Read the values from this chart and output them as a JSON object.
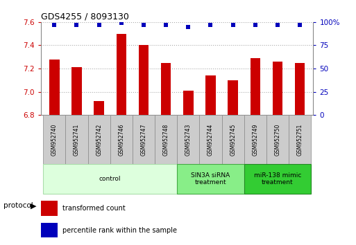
{
  "title": "GDS4255 / 8093130",
  "samples": [
    "GSM952740",
    "GSM952741",
    "GSM952742",
    "GSM952746",
    "GSM952747",
    "GSM952748",
    "GSM952743",
    "GSM952744",
    "GSM952745",
    "GSM952749",
    "GSM952750",
    "GSM952751"
  ],
  "bar_values": [
    7.28,
    7.21,
    6.92,
    7.5,
    7.4,
    7.25,
    7.01,
    7.14,
    7.1,
    7.29,
    7.26,
    7.25
  ],
  "dot_values": [
    97,
    97,
    97,
    99,
    97,
    97,
    95,
    97,
    97,
    97,
    97,
    97
  ],
  "ylim_left": [
    6.8,
    7.6
  ],
  "ylim_right": [
    0,
    100
  ],
  "bar_color": "#CC0000",
  "dot_color": "#0000BB",
  "bar_bottom": 6.8,
  "groups": [
    {
      "label": "control",
      "start": 0,
      "end": 6,
      "color": "#ddffdd",
      "edge_color": "#aaddaa"
    },
    {
      "label": "SIN3A siRNA\ntreatment",
      "start": 6,
      "end": 9,
      "color": "#88ee88",
      "edge_color": "#44aa44"
    },
    {
      "label": "miR-138 mimic\ntreatment",
      "start": 9,
      "end": 12,
      "color": "#33cc33",
      "edge_color": "#228822"
    }
  ],
  "legend_items": [
    {
      "label": "transformed count",
      "color": "#CC0000"
    },
    {
      "label": "percentile rank within the sample",
      "color": "#0000BB"
    }
  ],
  "grid_color": "#aaaaaa",
  "tick_color_left": "#CC0000",
  "tick_color_right": "#0000BB",
  "yticks_left": [
    6.8,
    7.0,
    7.2,
    7.4,
    7.6
  ],
  "yticks_right": [
    0,
    25,
    50,
    75,
    100
  ],
  "right_tick_labels": [
    "0",
    "25",
    "50",
    "75",
    "100%"
  ]
}
